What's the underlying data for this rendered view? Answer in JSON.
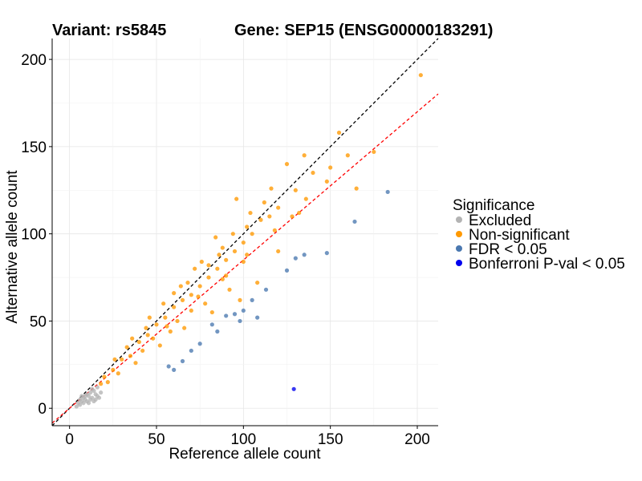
{
  "chart_data": {
    "type": "scatter",
    "title_left": "Variant: rs5845",
    "title_right": "Gene: SEP15 (ENSG00000183291)",
    "xlabel": "Reference allele count",
    "ylabel": "Alternative allele count",
    "xlim": [
      -10,
      212
    ],
    "ylim": [
      -10,
      212
    ],
    "xticks": [
      0,
      50,
      100,
      150,
      200
    ],
    "yticks": [
      0,
      50,
      100,
      150,
      200
    ],
    "grid": true,
    "reference_lines": [
      {
        "name": "identity",
        "slope": 1.0,
        "intercept": 0,
        "color": "#000000",
        "style": "dashed"
      },
      {
        "name": "fitted",
        "slope": 0.85,
        "intercept": 0,
        "color": "#ff0000",
        "style": "dashed"
      }
    ],
    "legend": {
      "title": "Significance",
      "position": "right",
      "entries": [
        {
          "label": "Excluded",
          "color": "#b3b3b3"
        },
        {
          "label": "Non-significant",
          "color": "#ff9900"
        },
        {
          "label": "FDR < 0.05",
          "color": "#4a78b0"
        },
        {
          "label": "Bonferroni P-val < 0.05",
          "color": "#0000ee"
        }
      ]
    },
    "series": [
      {
        "name": "Excluded",
        "color": "#b3b3b3",
        "points": [
          [
            5,
            3
          ],
          [
            6,
            5
          ],
          [
            7,
            4
          ],
          [
            8,
            6
          ],
          [
            9,
            5
          ],
          [
            10,
            8
          ],
          [
            11,
            7
          ],
          [
            12,
            9
          ],
          [
            8,
            3
          ],
          [
            13,
            6
          ],
          [
            14,
            10
          ],
          [
            10,
            4
          ],
          [
            12,
            5
          ],
          [
            15,
            8
          ],
          [
            16,
            12
          ],
          [
            11,
            3
          ],
          [
            9,
            7
          ],
          [
            13,
            11
          ],
          [
            15,
            5
          ],
          [
            17,
            6
          ],
          [
            6,
            2
          ],
          [
            4,
            1
          ],
          [
            18,
            9
          ],
          [
            7,
            7
          ],
          [
            14,
            4
          ],
          [
            16,
            7
          ]
        ]
      },
      {
        "name": "Non-significant",
        "color": "#ff9900",
        "points": [
          [
            20,
            18
          ],
          [
            25,
            22
          ],
          [
            30,
            28
          ],
          [
            35,
            30
          ],
          [
            40,
            38
          ],
          [
            45,
            42
          ],
          [
            50,
            48
          ],
          [
            55,
            52
          ],
          [
            60,
            58
          ],
          [
            65,
            62
          ],
          [
            70,
            65
          ],
          [
            75,
            70
          ],
          [
            80,
            75
          ],
          [
            85,
            80
          ],
          [
            90,
            85
          ],
          [
            95,
            90
          ],
          [
            100,
            95
          ],
          [
            105,
            100
          ],
          [
            110,
            108
          ],
          [
            115,
            110
          ],
          [
            120,
            115
          ],
          [
            130,
            125
          ],
          [
            140,
            135
          ],
          [
            155,
            158
          ],
          [
            175,
            147
          ],
          [
            202,
            191
          ],
          [
            48,
            40
          ],
          [
            62,
            50
          ],
          [
            78,
            60
          ],
          [
            92,
            68
          ],
          [
            68,
            72
          ],
          [
            88,
            92
          ],
          [
            102,
            104
          ],
          [
            58,
            44
          ],
          [
            72,
            80
          ],
          [
            84,
            98
          ],
          [
            96,
            120
          ],
          [
            112,
            118
          ],
          [
            125,
            140
          ],
          [
            135,
            145
          ],
          [
            38,
            26
          ],
          [
            52,
            36
          ],
          [
            66,
            46
          ],
          [
            82,
            55
          ],
          [
            98,
            62
          ],
          [
            108,
            72
          ],
          [
            120,
            90
          ],
          [
            28,
            20
          ],
          [
            33,
            35
          ],
          [
            44,
            46
          ],
          [
            54,
            60
          ],
          [
            64,
            70
          ],
          [
            76,
            84
          ],
          [
            86,
            88
          ],
          [
            94,
            100
          ],
          [
            104,
            112
          ],
          [
            116,
            126
          ],
          [
            148,
            130
          ],
          [
            160,
            145
          ],
          [
            70,
            56
          ],
          [
            60,
            66
          ],
          [
            80,
            82
          ],
          [
            90,
            76
          ],
          [
            100,
            84
          ],
          [
            22,
            15
          ],
          [
            42,
            33
          ],
          [
            56,
            47
          ],
          [
            74,
            64
          ],
          [
            88,
            74
          ],
          [
            102,
            88
          ],
          [
            118,
            102
          ],
          [
            132,
            112
          ],
          [
            46,
            52
          ],
          [
            36,
            40
          ],
          [
            26,
            28
          ],
          [
            18,
            14
          ],
          [
            150,
            138
          ],
          [
            165,
            126
          ],
          [
            128,
            110
          ],
          [
            136,
            120
          ]
        ]
      },
      {
        "name": "FDR < 0.05",
        "color": "#4a78b0",
        "points": [
          [
            57,
            24
          ],
          [
            65,
            27
          ],
          [
            75,
            37
          ],
          [
            82,
            48
          ],
          [
            90,
            53
          ],
          [
            95,
            54
          ],
          [
            100,
            56
          ],
          [
            105,
            62
          ],
          [
            108,
            52
          ],
          [
            113,
            68
          ],
          [
            125,
            79
          ],
          [
            130,
            86
          ],
          [
            135,
            88
          ],
          [
            148,
            89
          ],
          [
            164,
            107
          ],
          [
            183,
            124
          ],
          [
            70,
            33
          ],
          [
            85,
            44
          ],
          [
            60,
            22
          ],
          [
            98,
            50
          ]
        ]
      },
      {
        "name": "Bonferroni P-val < 0.05",
        "color": "#0000ee",
        "points": [
          [
            129,
            11
          ]
        ]
      }
    ]
  }
}
